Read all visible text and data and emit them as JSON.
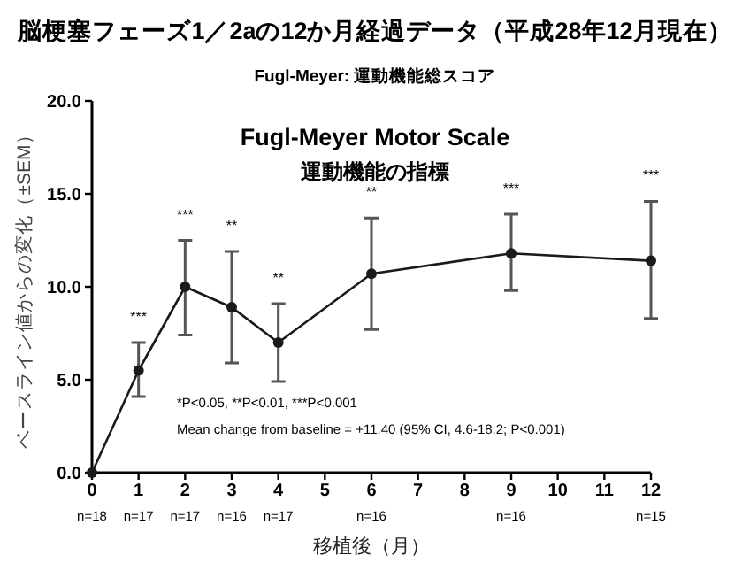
{
  "chart_data": {
    "type": "line",
    "title": "脳梗塞フェーズ1／2aの12か月経過データ（平成28年12月現在）",
    "subtitle": "Fugl-Meyer: 運動機能総スコア",
    "xlabel": "移植後（月）",
    "ylabel": "ベースライン値からの変化（±SEM）",
    "x": [
      0,
      1,
      2,
      3,
      4,
      6,
      9,
      12
    ],
    "series": [
      {
        "color": "#1a1a1a",
        "values": [
          0,
          5.5,
          10.0,
          8.9,
          7.0,
          10.7,
          11.8,
          11.4
        ],
        "errors": [
          null,
          [
            4.1,
            7.0
          ],
          [
            7.4,
            12.5
          ],
          [
            5.9,
            11.9
          ],
          [
            4.9,
            9.1
          ],
          [
            7.7,
            13.7
          ],
          [
            9.8,
            13.9
          ],
          [
            8.3,
            14.6
          ]
        ]
      }
    ],
    "xlim": [
      0,
      12
    ],
    "xticks": [
      0,
      1,
      2,
      3,
      4,
      5,
      6,
      7,
      8,
      9,
      10,
      11,
      12
    ],
    "ylim": [
      0,
      20
    ],
    "yticks": [
      {
        "value": 0,
        "label": "0.0"
      },
      {
        "value": 5,
        "label": "5.0"
      },
      {
        "value": 10,
        "label": "10.0"
      },
      {
        "value": 15,
        "label": "15.0"
      },
      {
        "value": 20,
        "label": "20.0"
      }
    ],
    "grid": false,
    "marker": "circle",
    "line_style": "solid",
    "annotations": [
      "Fugl-Meyer Motor Scale",
      "運動機能の指標",
      "*P<0.05, **P<0.01, ***P<0.001",
      "Mean change from baseline = +11.40 (95% CI, 4.6-18.2; P<0.001)",
      "***",
      "***",
      "**",
      "**",
      "**",
      "***",
      "***",
      "n=18",
      "n=17",
      "n=17",
      "n=16",
      "n=17",
      "n=16",
      "n=16",
      "n=15"
    ]
  }
}
